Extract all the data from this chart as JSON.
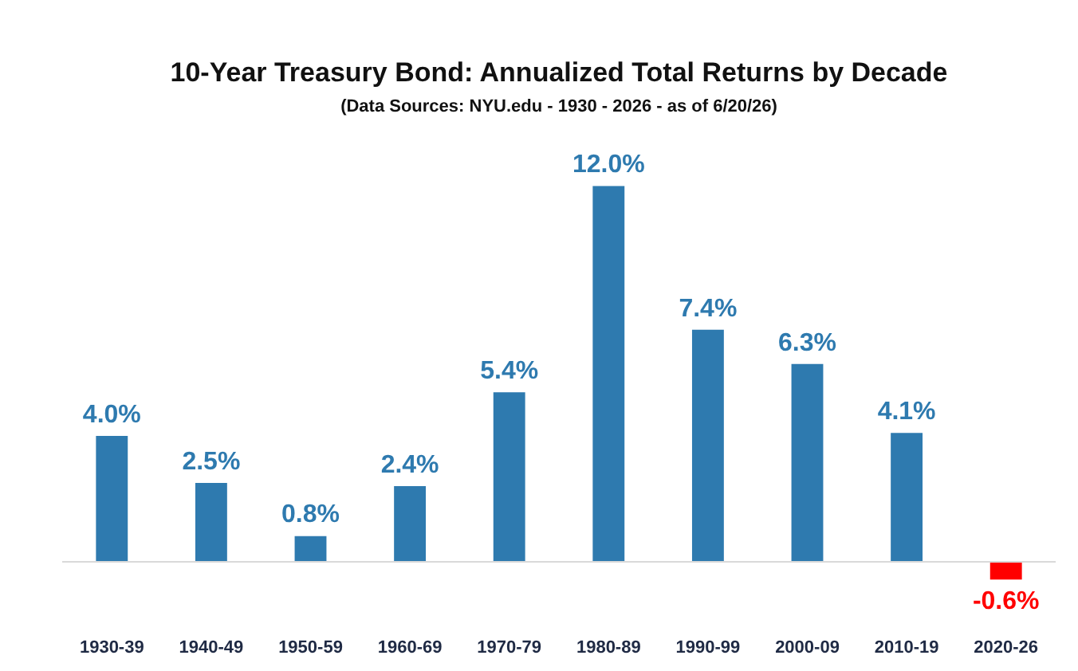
{
  "chart_data": {
    "type": "bar",
    "title": "10-Year Treasury Bond: Annualized Total Returns by Decade",
    "subtitle": "(Data Sources: NYU.edu - 1930 - 2026 - as of 6/20/26)",
    "categories": [
      "1930-39",
      "1940-49",
      "1950-59",
      "1960-69",
      "1970-79",
      "1980-89",
      "1990-99",
      "2000-09",
      "2010-19",
      "2020-26"
    ],
    "values": [
      4.0,
      2.5,
      0.8,
      2.4,
      5.4,
      12.0,
      7.4,
      6.3,
      4.1,
      -0.6
    ],
    "colors": [
      "#2e7aaf",
      "#2e7aaf",
      "#2e7aaf",
      "#2e7aaf",
      "#2e7aaf",
      "#2e7aaf",
      "#2e7aaf",
      "#2e7aaf",
      "#2e7aaf",
      "#ff0000"
    ],
    "value_labels": [
      "4.0%",
      "2.5%",
      "0.8%",
      "2.4%",
      "5.4%",
      "12.0%",
      "7.4%",
      "6.3%",
      "4.1%",
      "-0.6%"
    ],
    "tick_labels": "x"
  }
}
